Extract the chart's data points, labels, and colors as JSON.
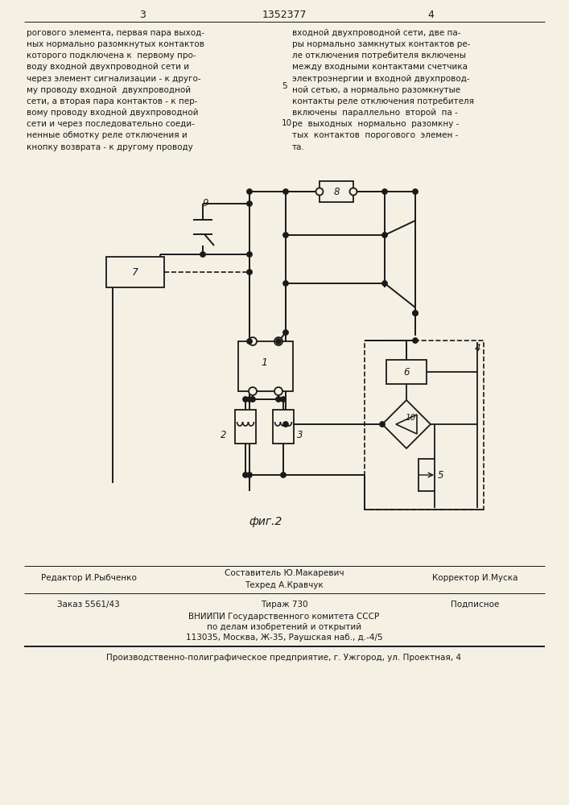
{
  "page_number_left": "3",
  "page_number_center": "1352377",
  "page_number_right": "4",
  "text_left": "рогового элемента, первая пара выход-\nных нормально разомкнутых контактов\nкоторого подключена к  первому про-\nводу входной двухпроводной сети и\nчерез элемент сигнализации - к друго-\nму проводу входной  двухпроводной\nсети, а вторая пара контактов - к пер-\nвому проводу входной двухпроводной\nсети и через последовательно соеди-\nненные обмотку реле отключения и\nкнопку возврата - к другому проводу",
  "text_right": "входной двухпроводной сети, две па-\nры нормально замкнутых контактов ре-\nле отключения потребителя включены\nмежду входными контактами счетчика\nэлектроэнергии и входной двухпровод-\nной сетью, а нормально разомкнутые\nконтакты реле отключения потребителя\nвключены  параллельно  второй  па -\nре  выходных  нормально  разомкну -\nтых  контактов  порогового  элемен -\nта.",
  "fig_label": "фиг.2",
  "editor_line": "Редактор И.Рыбченко",
  "composer_line": "Составитель Ю.Макаревич",
  "techred_line": "Техред А.Кравчук",
  "corrector_line": "Корректор И.Муска",
  "order_line": "Заказ 5561/43",
  "tirazh_line": "Тираж 730",
  "podpisnoe_line": "Подписное",
  "vniipii_line": "ВНИИПИ Государственного комитета СССР",
  "po_delam_line": "по делам изобретений и открытий",
  "address_line": "113035, Москва, Ж-35, Раушская наб., д.-4/5",
  "factory_line": "Производственно-полиграфическое предприятие, г. Ужгород, ул. Проектная, 4",
  "bg_color": "#f4f0e4",
  "line_color": "#1a1a1a",
  "text_color": "#1a1a1a"
}
